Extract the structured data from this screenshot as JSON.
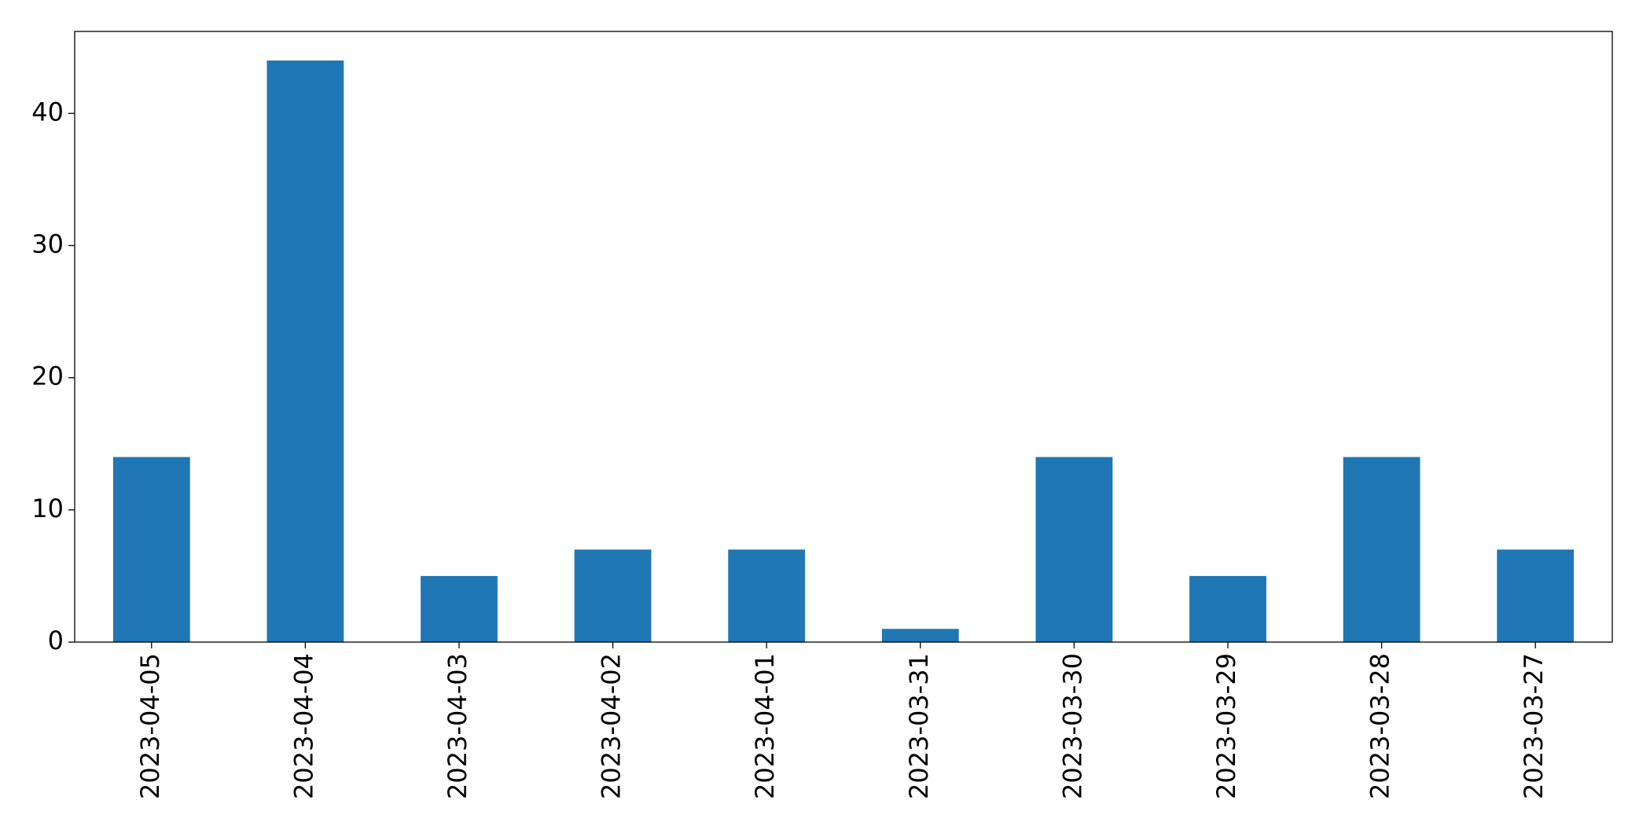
{
  "chart_data": {
    "type": "bar",
    "categories": [
      "2023-04-05",
      "2023-04-04",
      "2023-04-03",
      "2023-04-02",
      "2023-04-01",
      "2023-03-31",
      "2023-03-30",
      "2023-03-29",
      "2023-03-28",
      "2023-03-27"
    ],
    "values": [
      14,
      44,
      5,
      7,
      7,
      1,
      14,
      5,
      14,
      7
    ],
    "color": "#1f77b4",
    "ylim": [
      0,
      46.2
    ],
    "yticks": [
      0,
      10,
      20,
      30,
      40
    ],
    "grid": false
  }
}
